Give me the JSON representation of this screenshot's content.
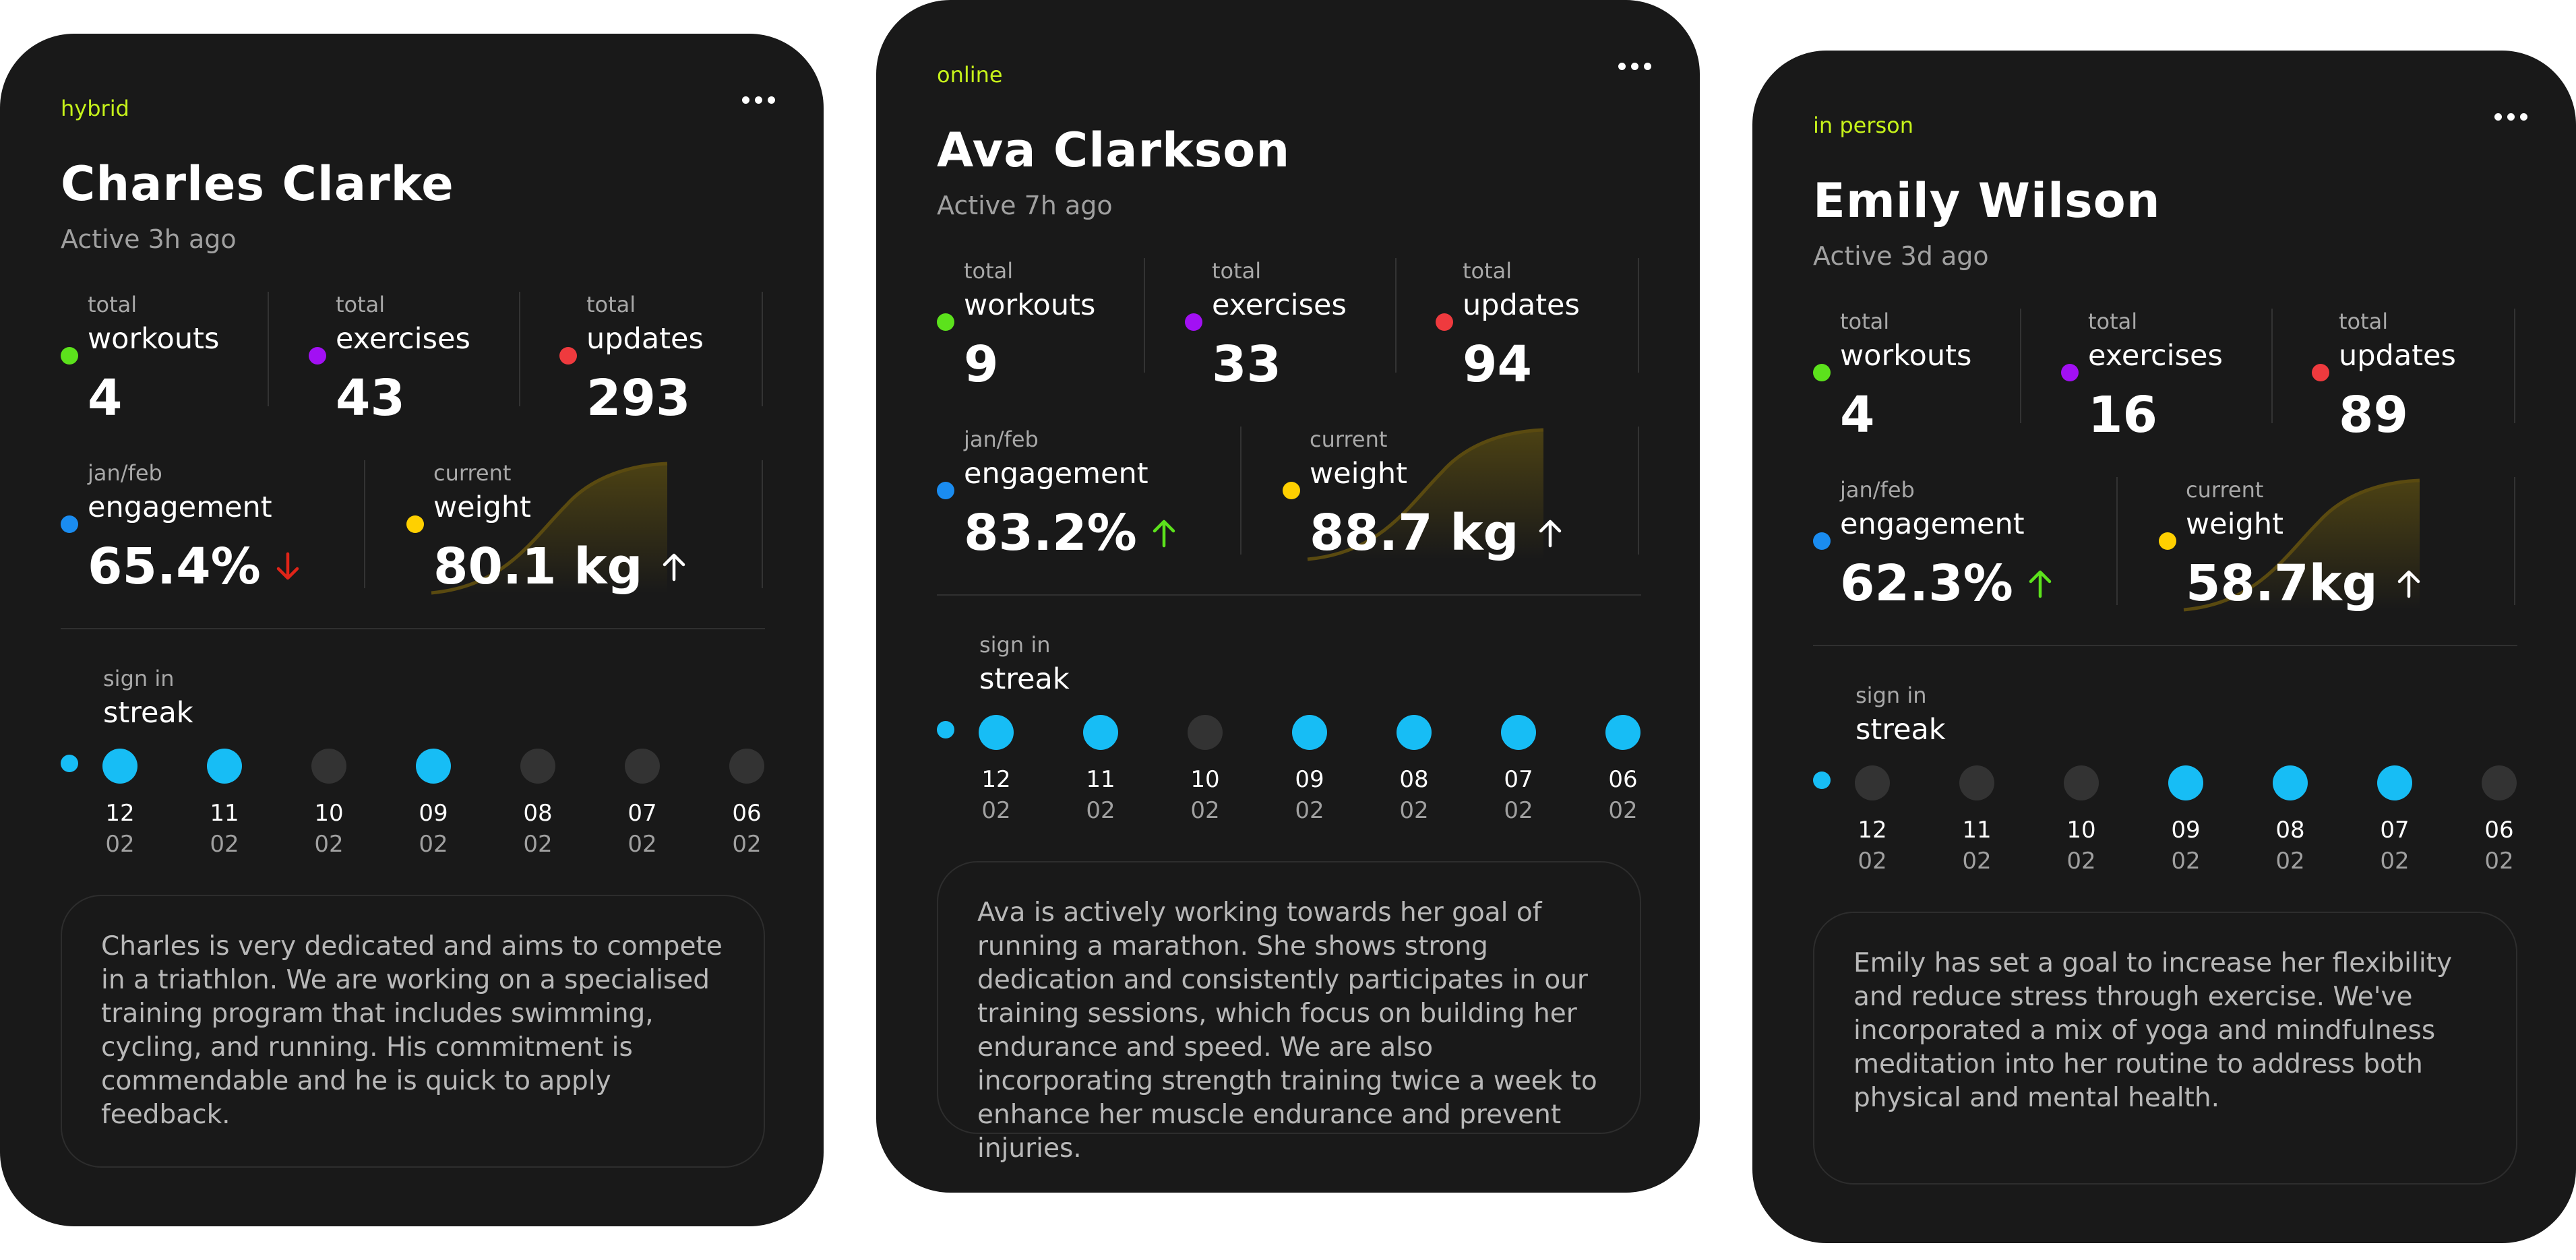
{
  "colors": {
    "background": "#ffffff",
    "card": "#191919",
    "accent_green": "#c6f21a",
    "workouts": "#5ce21c",
    "exercises": "#a210f4",
    "updates": "#ef3a3e",
    "engagement": "#1a8cf0",
    "weight": "#ffd000",
    "streak_on": "#17bdf5",
    "streak_off": "#333333",
    "trend_up": "#5ce21c",
    "trend_down": "#e02418"
  },
  "labels": {
    "total": "total",
    "workouts": "workouts",
    "exercises": "exercises",
    "updates": "updates",
    "period": "jan/feb",
    "engagement": "engagement",
    "current": "current",
    "weight": "weight",
    "sign_in": "sign in",
    "streak": "streak"
  },
  "cards": [
    {
      "mode": "hybrid",
      "name": "Charles Clarke",
      "active": "Active 3h ago",
      "workouts": "4",
      "exercises": "43",
      "updates": "293",
      "engagement": "65.4%",
      "engagement_trend": "down",
      "weight": "80.1 kg",
      "weight_trend": "up",
      "streak": [
        {
          "day": "12",
          "month": "02",
          "active": true
        },
        {
          "day": "11",
          "month": "02",
          "active": true
        },
        {
          "day": "10",
          "month": "02",
          "active": false
        },
        {
          "day": "09",
          "month": "02",
          "active": true
        },
        {
          "day": "08",
          "month": "02",
          "active": false
        },
        {
          "day": "07",
          "month": "02",
          "active": false
        },
        {
          "day": "06",
          "month": "02",
          "active": false
        }
      ],
      "note": "Charles is very dedicated and aims to compete in a triathlon. We are working on a specialised training program that includes swimming, cycling, and running. His commitment is commendable and he is quick to apply feedback."
    },
    {
      "mode": "online",
      "name": "Ava Clarkson",
      "active": "Active 7h ago",
      "workouts": "9",
      "exercises": "33",
      "updates": "94",
      "engagement": "83.2%",
      "engagement_trend": "up",
      "weight": "88.7 kg",
      "weight_trend": "up",
      "streak": [
        {
          "day": "12",
          "month": "02",
          "active": true
        },
        {
          "day": "11",
          "month": "02",
          "active": true
        },
        {
          "day": "10",
          "month": "02",
          "active": false
        },
        {
          "day": "09",
          "month": "02",
          "active": true
        },
        {
          "day": "08",
          "month": "02",
          "active": true
        },
        {
          "day": "07",
          "month": "02",
          "active": true
        },
        {
          "day": "06",
          "month": "02",
          "active": true
        }
      ],
      "note": "Ava is actively working towards her goal of running a marathon. She shows strong dedication and consistently participates in our training sessions, which focus on building her endurance and speed. We are also incorporating strength training twice a week to enhance her muscle endurance and prevent injuries."
    },
    {
      "mode": "in person",
      "name": "Emily Wilson",
      "active": "Active 3d ago",
      "workouts": "4",
      "exercises": "16",
      "updates": "89",
      "engagement": "62.3%",
      "engagement_trend": "up",
      "weight": "58.7kg",
      "weight_trend": "up",
      "streak": [
        {
          "day": "12",
          "month": "02",
          "active": false
        },
        {
          "day": "11",
          "month": "02",
          "active": false
        },
        {
          "day": "10",
          "month": "02",
          "active": false
        },
        {
          "day": "09",
          "month": "02",
          "active": true
        },
        {
          "day": "08",
          "month": "02",
          "active": true
        },
        {
          "day": "07",
          "month": "02",
          "active": true
        },
        {
          "day": "06",
          "month": "02",
          "active": false
        }
      ],
      "note": "Emily has set a goal to increase her flexibility and reduce stress through exercise. We've incorporated a mix of yoga and mindfulness meditation into her routine to address both physical and mental health."
    }
  ]
}
